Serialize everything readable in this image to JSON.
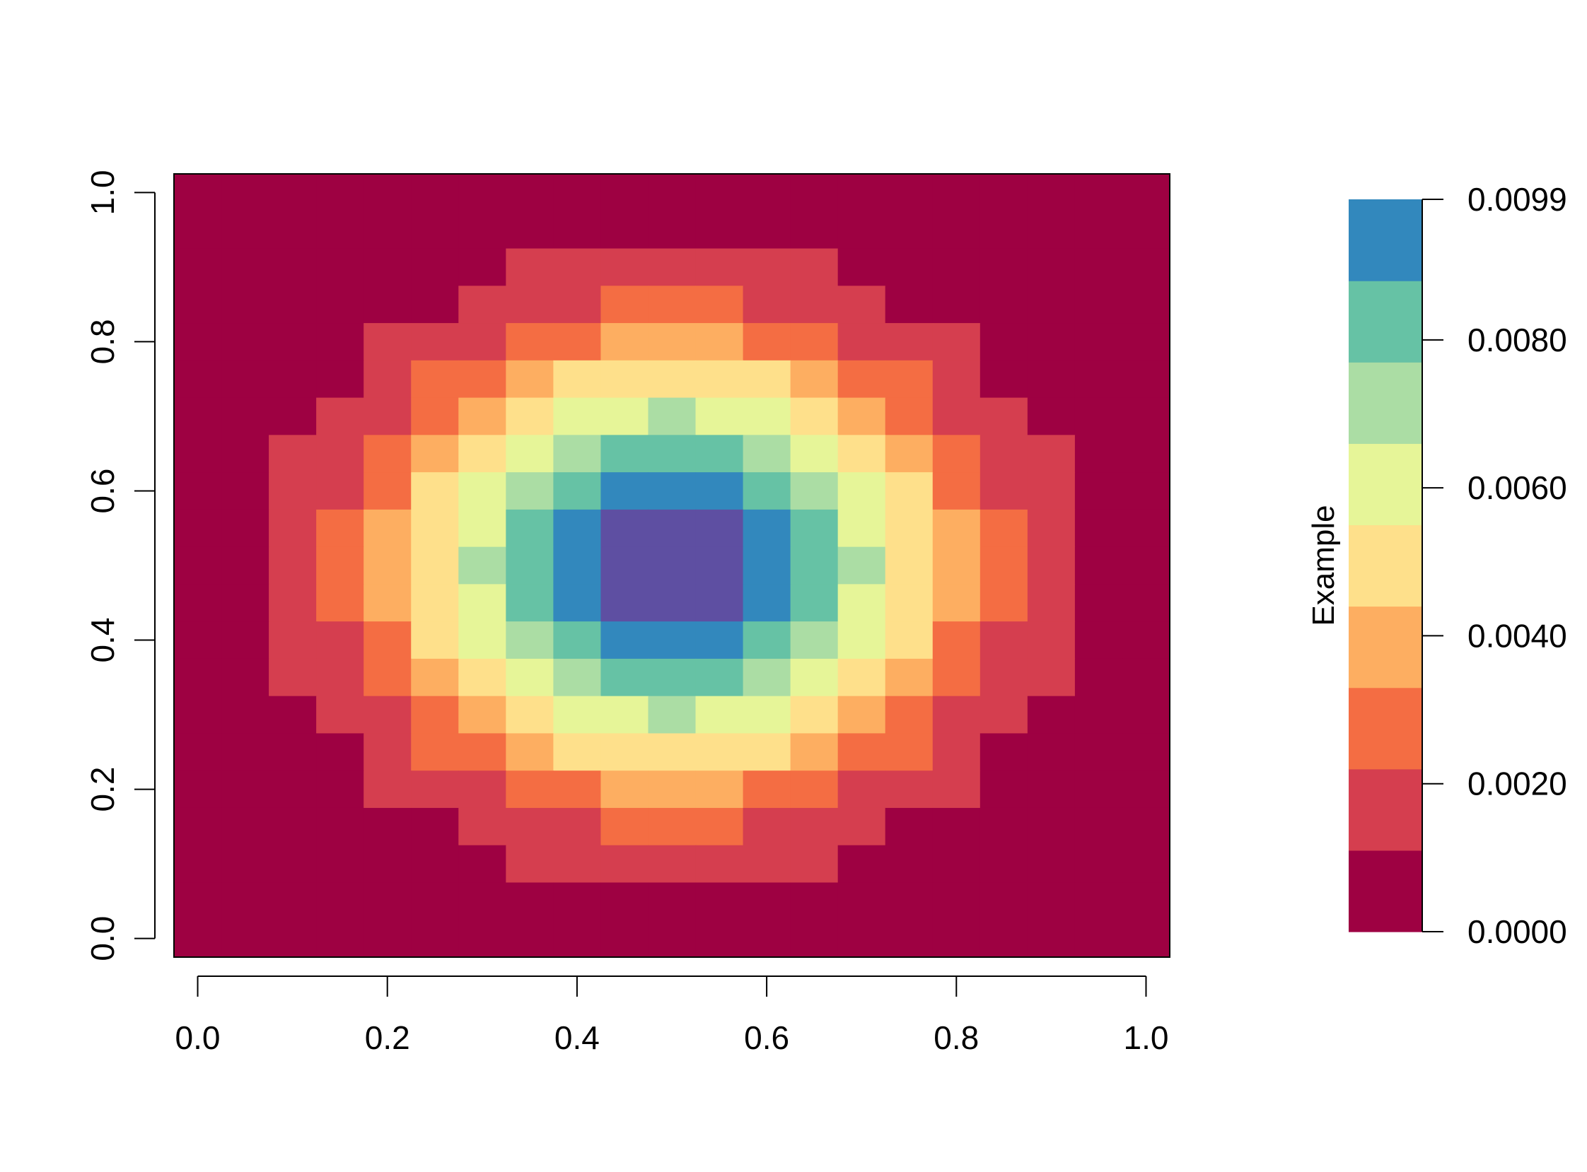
{
  "chart_data": {
    "type": "heatmap",
    "title": "",
    "xlabel": "",
    "ylabel": "",
    "xlim": [
      0.0,
      1.0
    ],
    "ylim": [
      0.0,
      1.0
    ],
    "x_ticks": [
      "0.0",
      "0.2",
      "0.4",
      "0.6",
      "0.8",
      "1.0"
    ],
    "y_ticks": [
      "0.0",
      "0.2",
      "0.4",
      "0.6",
      "0.8",
      "1.0"
    ],
    "x_centers": [
      0.0,
      0.05,
      0.1,
      0.15,
      0.2,
      0.25,
      0.3,
      0.35,
      0.4,
      0.45,
      0.5,
      0.55,
      0.6,
      0.65,
      0.7,
      0.75,
      0.8,
      0.85,
      0.9,
      0.95,
      1.0
    ],
    "y_centers": [
      0.0,
      0.05,
      0.1,
      0.15,
      0.2,
      0.25,
      0.3,
      0.35,
      0.4,
      0.45,
      0.5,
      0.55,
      0.6,
      0.65,
      0.7,
      0.75,
      0.8,
      0.85,
      0.9,
      0.95,
      1.0
    ],
    "levels": [
      0,
      0.00125,
      0.0025,
      0.00375,
      0.005,
      0.00625,
      0.0075,
      0.00875,
      0.0099
    ],
    "grid_level_index": [
      [
        0,
        0,
        0,
        0,
        0,
        0,
        0,
        0,
        0,
        0,
        0,
        0,
        0,
        0,
        0,
        0,
        0,
        0,
        0,
        0,
        0
      ],
      [
        0,
        0,
        0,
        0,
        0,
        0,
        0,
        0,
        0,
        0,
        0,
        0,
        0,
        0,
        0,
        0,
        0,
        0,
        0,
        0,
        0
      ],
      [
        0,
        0,
        0,
        0,
        0,
        0,
        0,
        1,
        1,
        1,
        1,
        1,
        1,
        1,
        0,
        0,
        0,
        0,
        0,
        0,
        0
      ],
      [
        0,
        0,
        0,
        0,
        0,
        0,
        1,
        1,
        1,
        2,
        2,
        2,
        1,
        1,
        1,
        0,
        0,
        0,
        0,
        0,
        0
      ],
      [
        0,
        0,
        0,
        0,
        1,
        1,
        1,
        2,
        2,
        3,
        3,
        3,
        2,
        2,
        1,
        1,
        1,
        0,
        0,
        0,
        0
      ],
      [
        0,
        0,
        0,
        0,
        1,
        2,
        2,
        3,
        4,
        4,
        4,
        4,
        4,
        3,
        2,
        2,
        1,
        0,
        0,
        0,
        0
      ],
      [
        0,
        0,
        0,
        1,
        1,
        2,
        3,
        4,
        5,
        5,
        6,
        5,
        5,
        4,
        3,
        2,
        1,
        1,
        0,
        0,
        0
      ],
      [
        0,
        0,
        1,
        1,
        2,
        3,
        4,
        5,
        6,
        7,
        7,
        7,
        6,
        5,
        4,
        3,
        2,
        1,
        1,
        0,
        0
      ],
      [
        0,
        0,
        1,
        1,
        2,
        4,
        5,
        6,
        7,
        8,
        8,
        8,
        7,
        6,
        5,
        4,
        2,
        1,
        1,
        0,
        0
      ],
      [
        0,
        0,
        1,
        2,
        3,
        4,
        5,
        7,
        8,
        9,
        9,
        9,
        8,
        7,
        5,
        4,
        3,
        2,
        1,
        0,
        0
      ],
      [
        0,
        0,
        1,
        2,
        3,
        4,
        6,
        7,
        8,
        9,
        9,
        9,
        8,
        7,
        6,
        4,
        3,
        2,
        1,
        0,
        0
      ],
      [
        0,
        0,
        1,
        2,
        3,
        4,
        5,
        7,
        8,
        9,
        9,
        9,
        8,
        7,
        5,
        4,
        3,
        2,
        1,
        0,
        0
      ],
      [
        0,
        0,
        1,
        1,
        2,
        4,
        5,
        6,
        7,
        8,
        8,
        8,
        7,
        6,
        5,
        4,
        2,
        1,
        1,
        0,
        0
      ],
      [
        0,
        0,
        1,
        1,
        2,
        3,
        4,
        5,
        6,
        7,
        7,
        7,
        6,
        5,
        4,
        3,
        2,
        1,
        1,
        0,
        0
      ],
      [
        0,
        0,
        0,
        1,
        1,
        2,
        3,
        4,
        5,
        5,
        6,
        5,
        5,
        4,
        3,
        2,
        1,
        1,
        0,
        0,
        0
      ],
      [
        0,
        0,
        0,
        0,
        1,
        2,
        2,
        3,
        4,
        4,
        4,
        4,
        4,
        3,
        2,
        2,
        1,
        0,
        0,
        0,
        0
      ],
      [
        0,
        0,
        0,
        0,
        1,
        1,
        1,
        2,
        2,
        3,
        3,
        3,
        2,
        2,
        1,
        1,
        1,
        0,
        0,
        0,
        0
      ],
      [
        0,
        0,
        0,
        0,
        0,
        0,
        1,
        1,
        1,
        2,
        2,
        2,
        1,
        1,
        1,
        0,
        0,
        0,
        0,
        0,
        0
      ],
      [
        0,
        0,
        0,
        0,
        0,
        0,
        0,
        1,
        1,
        1,
        1,
        1,
        1,
        1,
        0,
        0,
        0,
        0,
        0,
        0,
        0
      ],
      [
        0,
        0,
        0,
        0,
        0,
        0,
        0,
        0,
        0,
        0,
        0,
        0,
        0,
        0,
        0,
        0,
        0,
        0,
        0,
        0,
        0
      ],
      [
        0,
        0,
        0,
        0,
        0,
        0,
        0,
        0,
        0,
        0,
        0,
        0,
        0,
        0,
        0,
        0,
        0,
        0,
        0,
        0,
        0
      ]
    ],
    "colors": [
      "#9e0142",
      "#d53e4f",
      "#f46d43",
      "#fdae61",
      "#fee08b",
      "#e6f598",
      "#abdda4",
      "#66c2a5",
      "#3288bd",
      "#5e4fa2"
    ],
    "legend": {
      "title": "Example",
      "placement": "right",
      "tick_labels": [
        "0.0000",
        "0.0020",
        "0.0040",
        "0.0060",
        "0.0080",
        "0.0099"
      ],
      "tick_values": [
        0,
        0.002,
        0.004,
        0.006,
        0.008,
        0.0099
      ],
      "range": [
        0,
        0.0099
      ]
    },
    "grid": false
  }
}
